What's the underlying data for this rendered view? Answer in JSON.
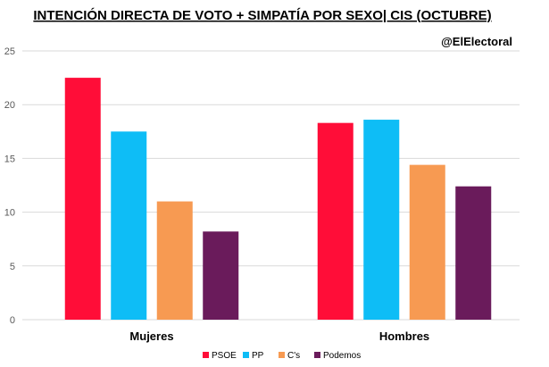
{
  "chart_data": {
    "type": "bar",
    "title": "INTENCIÓN DIRECTA DE VOTO + SIMPATÍA POR SEXO| CIS (OCTUBRE)",
    "watermark": "@ElElectoral",
    "categories": [
      "Mujeres",
      "Hombres"
    ],
    "series": [
      {
        "name": "PSOE",
        "color": "#ff0d38",
        "values": [
          22.5,
          18.3
        ]
      },
      {
        "name": "PP",
        "color": "#0ebdf6",
        "values": [
          17.5,
          18.6
        ]
      },
      {
        "name": "C's",
        "color": "#f79a52",
        "values": [
          11.0,
          14.4
        ]
      },
      {
        "name": "Podemos",
        "color": "#6a1b5b",
        "values": [
          8.2,
          12.4
        ]
      }
    ],
    "ylim": [
      0,
      25
    ],
    "yticks": [
      0,
      5,
      10,
      15,
      20,
      25
    ],
    "grid": true,
    "legend_position": "bottom"
  }
}
